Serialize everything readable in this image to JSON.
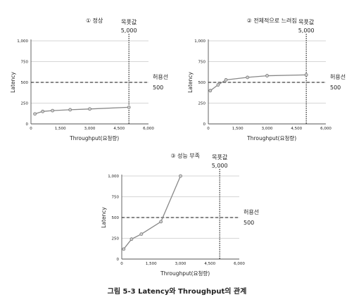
{
  "figure": {
    "caption": "그림 5-3  Latency와 Throughput의 관계"
  },
  "colors": {
    "series_line": "#888888",
    "marker_fill": "#d0d0d0",
    "marker_stroke": "#777777",
    "axis": "#555555",
    "gridline": "#c8c8c8",
    "threshold_line": "#111111",
    "target_line": "#111111",
    "text": "#222222"
  },
  "chart_data": [
    {
      "type": "line",
      "title": "① 정상",
      "xlabel": "Throughput(요청량)",
      "ylabel": "Latency",
      "xlim": [
        0,
        6000
      ],
      "ylim": [
        0,
        1000
      ],
      "x_ticks": [
        0,
        1500,
        3000,
        4500,
        6000
      ],
      "x_tick_labels": [
        "0",
        "1,500",
        "3,000",
        "4,500",
        "6,000"
      ],
      "y_ticks": [
        0,
        250,
        500,
        750,
        1000
      ],
      "y_tick_labels": [
        "0",
        "250",
        "500",
        "750",
        "1,000"
      ],
      "grid": true,
      "series": [
        {
          "x": [
            200,
            600,
            1100,
            2000,
            3000,
            5000
          ],
          "y": [
            120,
            150,
            160,
            170,
            180,
            200
          ]
        }
      ],
      "threshold": {
        "y": 500,
        "label": "허용선",
        "value_label": "500"
      },
      "target": {
        "x": 5000,
        "label": "목푯값",
        "value_label": "5,000"
      }
    },
    {
      "type": "line",
      "title": "② 전체적으로 느려짐",
      "xlabel": "Throughput(요청량)",
      "ylabel": "Latency",
      "xlim": [
        0,
        6000
      ],
      "ylim": [
        0,
        1000
      ],
      "x_ticks": [
        0,
        1500,
        3000,
        4500,
        6000
      ],
      "x_tick_labels": [
        "0",
        "1,500",
        "3,000",
        "4,500",
        "6,000"
      ],
      "y_ticks": [
        0,
        250,
        500,
        750,
        1000
      ],
      "y_tick_labels": [
        "0",
        "250",
        "500",
        "750",
        "1,000"
      ],
      "grid": true,
      "series": [
        {
          "x": [
            100,
            500,
            900,
            2000,
            3000,
            5000
          ],
          "y": [
            400,
            470,
            530,
            560,
            580,
            590
          ]
        }
      ],
      "threshold": {
        "y": 500,
        "label": "허용선",
        "value_label": "500"
      },
      "target": {
        "x": 5000,
        "label": "목푯값",
        "value_label": "5,000"
      }
    },
    {
      "type": "line",
      "title": "③ 성능 부족",
      "xlabel": "Throughput(요청량)",
      "ylabel": "Latency",
      "xlim": [
        0,
        6000
      ],
      "ylim": [
        0,
        1000
      ],
      "x_ticks": [
        0,
        1500,
        3000,
        4500,
        6000
      ],
      "x_tick_labels": [
        "0",
        "1,500",
        "3,000",
        "4,500",
        "6,000"
      ],
      "y_ticks": [
        0,
        250,
        500,
        750,
        1000
      ],
      "y_tick_labels": [
        "0",
        "250",
        "500",
        "750",
        "1,000"
      ],
      "grid": true,
      "series": [
        {
          "x": [
            100,
            500,
            1000,
            2000,
            3000
          ],
          "y": [
            120,
            240,
            300,
            450,
            1000
          ]
        }
      ],
      "threshold": {
        "y": 500,
        "label": "허용선",
        "value_label": "500"
      },
      "target": {
        "x": 5000,
        "label": "목푯값",
        "value_label": "5,000"
      }
    }
  ]
}
